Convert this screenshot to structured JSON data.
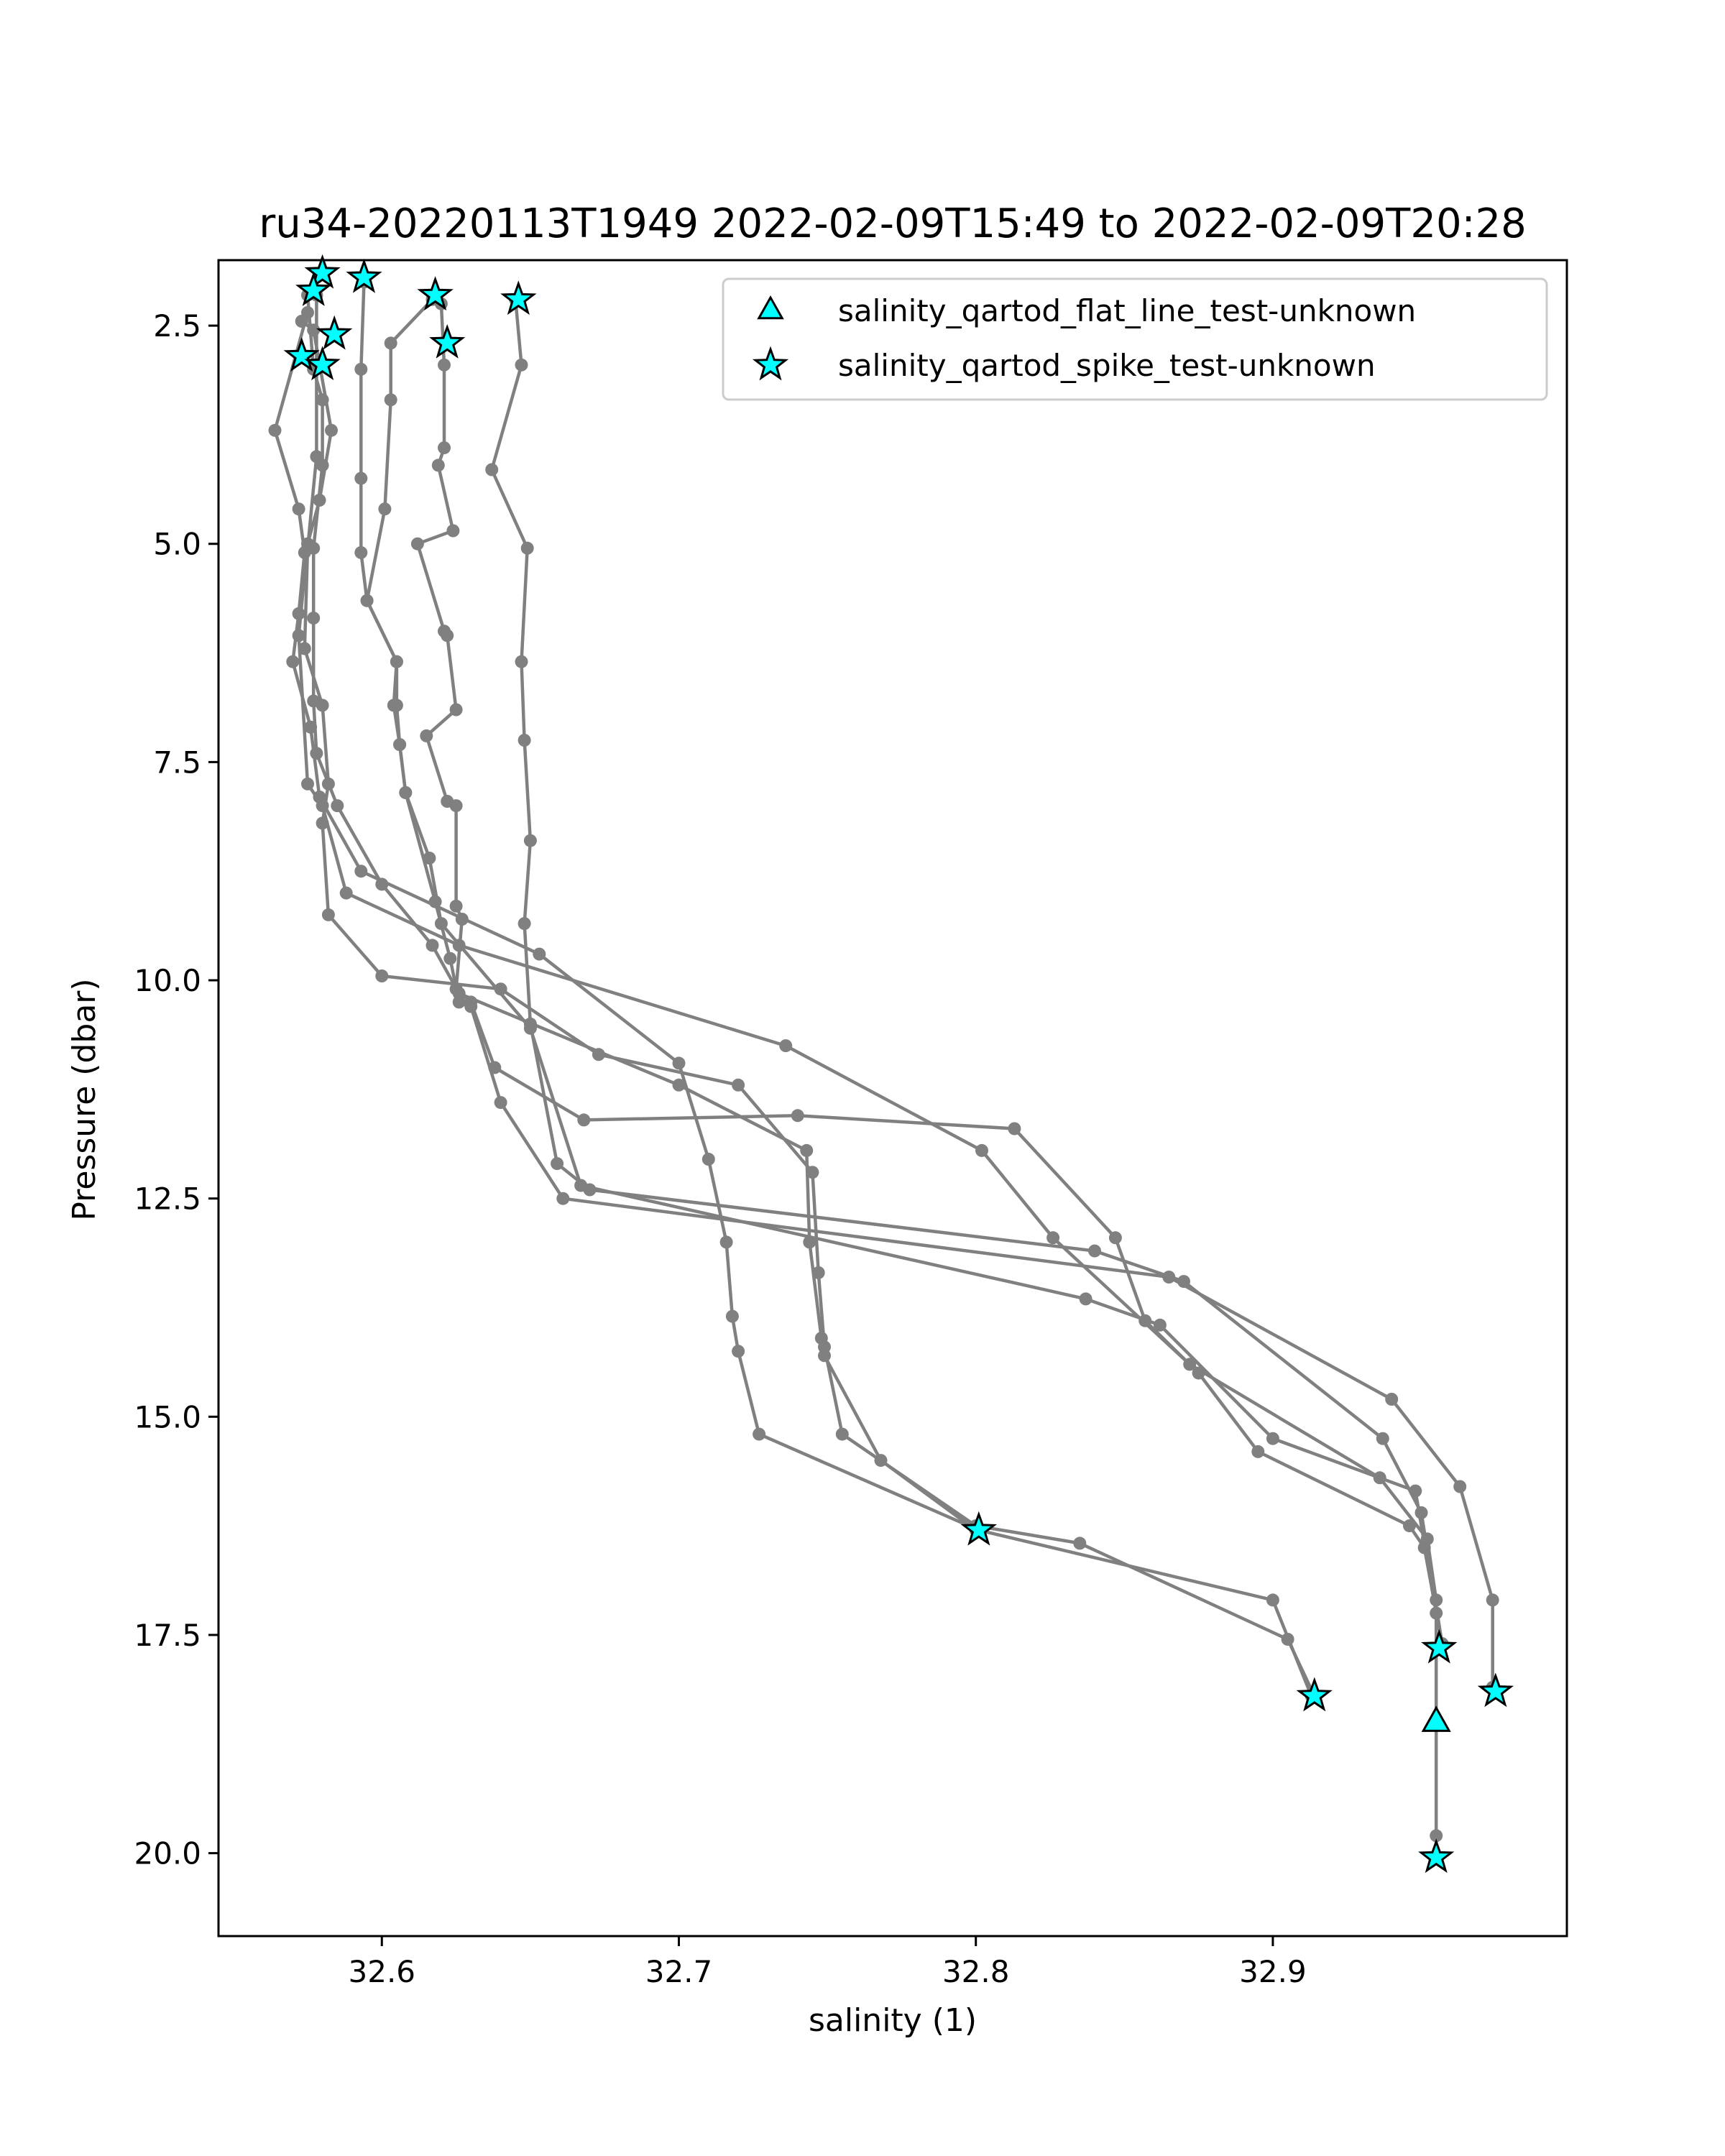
{
  "chart_data": {
    "type": "line",
    "title": "ru34-20220113T1949 2022-02-09T15:49 to 2022-02-09T20:28",
    "xlabel": "salinity (1)",
    "ylabel": "Pressure (dbar)",
    "xlim": [
      32.545,
      32.999
    ],
    "ylim": [
      20.95,
      1.75
    ],
    "y_inverted": true,
    "grid": false,
    "x_ticks": [
      32.6,
      32.7,
      32.8,
      32.9
    ],
    "x_tick_labels": [
      "32.6",
      "32.7",
      "32.8",
      "32.9"
    ],
    "y_ticks": [
      2.5,
      5.0,
      7.5,
      10.0,
      12.5,
      15.0,
      17.5,
      20.0
    ],
    "y_tick_labels": [
      "2.5",
      "5.0",
      "7.5",
      "10.0",
      "12.5",
      "15.0",
      "17.5",
      "20.0"
    ],
    "line_color": "#808080",
    "flag_color": "#00ffff",
    "legend": {
      "placement": "top-right",
      "entries": [
        {
          "label": "salinity_qartod_flat_line_test-unknown",
          "marker": "triangle"
        },
        {
          "label": "salinity_qartod_spike_test-unknown",
          "marker": "star"
        }
      ]
    },
    "profiles": [
      [
        [
          32.575,
          2.35
        ],
        [
          32.564,
          3.7
        ],
        [
          32.572,
          4.6
        ],
        [
          32.574,
          5.1
        ],
        [
          32.572,
          5.8
        ],
        [
          32.57,
          6.35
        ],
        [
          32.576,
          7.1
        ],
        [
          32.579,
          7.9
        ],
        [
          32.593,
          8.75
        ],
        [
          32.653,
          9.7
        ],
        [
          32.7,
          10.95
        ],
        [
          32.71,
          12.05
        ],
        [
          32.716,
          13.0
        ],
        [
          32.718,
          13.85
        ],
        [
          32.72,
          14.25
        ],
        [
          32.727,
          15.2
        ],
        [
          32.801,
          16.3
        ],
        [
          32.9,
          17.1
        ],
        [
          32.913,
          18.2
        ]
      ],
      [
        [
          32.578,
          2.15
        ],
        [
          32.578,
          4.0
        ],
        [
          32.575,
          5.05
        ],
        [
          32.574,
          6.2
        ],
        [
          32.58,
          6.85
        ],
        [
          32.582,
          7.75
        ],
        [
          32.58,
          8.2
        ],
        [
          32.582,
          9.25
        ],
        [
          32.6,
          9.95
        ],
        [
          32.64,
          10.1
        ],
        [
          32.673,
          10.85
        ],
        [
          32.72,
          11.2
        ],
        [
          32.745,
          12.2
        ],
        [
          32.747,
          13.35
        ],
        [
          32.749,
          14.2
        ],
        [
          32.755,
          15.2
        ],
        [
          32.8,
          16.25
        ],
        [
          32.835,
          16.45
        ],
        [
          32.905,
          17.55
        ],
        [
          32.914,
          18.2
        ]
      ],
      [
        [
          32.575,
          2.15
        ],
        [
          32.577,
          3.0
        ],
        [
          32.58,
          3.35
        ],
        [
          32.58,
          4.1
        ],
        [
          32.577,
          5.05
        ],
        [
          32.577,
          5.85
        ],
        [
          32.577,
          6.8
        ],
        [
          32.578,
          7.4
        ],
        [
          32.585,
          8.0
        ],
        [
          32.6,
          8.9
        ],
        [
          32.617,
          9.6
        ],
        [
          32.626,
          10.15
        ],
        [
          32.7,
          11.2
        ],
        [
          32.743,
          11.95
        ],
        [
          32.744,
          13.0
        ],
        [
          32.748,
          14.1
        ],
        [
          32.749,
          14.3
        ],
        [
          32.768,
          15.5
        ],
        [
          32.8,
          16.3
        ]
      ],
      [
        [
          32.594,
          2.0
        ],
        [
          32.593,
          3.0
        ],
        [
          32.593,
          4.25
        ],
        [
          32.593,
          5.1
        ],
        [
          32.595,
          5.65
        ],
        [
          32.605,
          6.35
        ],
        [
          32.604,
          6.85
        ],
        [
          32.606,
          7.3
        ],
        [
          32.608,
          7.85
        ],
        [
          32.616,
          8.6
        ],
        [
          32.62,
          9.35
        ],
        [
          32.65,
          10.55
        ],
        [
          32.667,
          12.35
        ],
        [
          32.837,
          13.65
        ],
        [
          32.862,
          13.95
        ],
        [
          32.9,
          15.25
        ],
        [
          32.948,
          15.85
        ],
        [
          32.955,
          17.25
        ],
        [
          32.955,
          18.5
        ],
        [
          32.955,
          19.8
        ],
        [
          32.955,
          20.05
        ]
      ],
      [
        [
          32.617,
          2.2
        ],
        [
          32.603,
          2.7
        ],
        [
          32.603,
          3.35
        ],
        [
          32.601,
          4.6
        ],
        [
          32.595,
          5.65
        ],
        [
          32.605,
          6.35
        ],
        [
          32.605,
          6.85
        ],
        [
          32.606,
          7.3
        ],
        [
          32.608,
          7.85
        ],
        [
          32.618,
          9.1
        ],
        [
          32.623,
          9.75
        ],
        [
          32.626,
          10.25
        ],
        [
          32.63,
          10.3
        ],
        [
          32.64,
          11.4
        ],
        [
          32.661,
          12.5
        ],
        [
          32.865,
          13.4
        ],
        [
          32.94,
          14.8
        ],
        [
          32.963,
          15.8
        ],
        [
          32.974,
          17.1
        ],
        [
          32.974,
          18.1
        ]
      ],
      [
        [
          32.62,
          2.25
        ],
        [
          32.621,
          2.95
        ],
        [
          32.621,
          3.9
        ],
        [
          32.619,
          4.1
        ],
        [
          32.624,
          4.85
        ],
        [
          32.612,
          5.0
        ],
        [
          32.621,
          6.0
        ],
        [
          32.622,
          6.05
        ],
        [
          32.625,
          6.9
        ],
        [
          32.615,
          7.2
        ],
        [
          32.622,
          7.95
        ],
        [
          32.625,
          8.0
        ],
        [
          32.625,
          9.15
        ],
        [
          32.627,
          9.3
        ],
        [
          32.625,
          10.1
        ],
        [
          32.63,
          10.25
        ],
        [
          32.638,
          11.0
        ],
        [
          32.668,
          11.6
        ],
        [
          32.74,
          11.55
        ],
        [
          32.813,
          11.7
        ],
        [
          32.847,
          12.95
        ],
        [
          32.857,
          13.9
        ],
        [
          32.875,
          14.5
        ],
        [
          32.895,
          15.4
        ],
        [
          32.946,
          16.25
        ],
        [
          32.951,
          16.5
        ],
        [
          32.957,
          17.6
        ]
      ],
      [
        [
          32.645,
          2.2
        ],
        [
          32.647,
          2.95
        ],
        [
          32.637,
          4.15
        ],
        [
          32.649,
          5.05
        ],
        [
          32.647,
          6.35
        ],
        [
          32.648,
          7.25
        ],
        [
          32.65,
          8.4
        ],
        [
          32.648,
          9.35
        ],
        [
          32.65,
          10.5
        ],
        [
          32.659,
          12.1
        ],
        [
          32.67,
          12.4
        ],
        [
          32.84,
          13.1
        ],
        [
          32.87,
          13.45
        ],
        [
          32.937,
          15.25
        ],
        [
          32.95,
          16.1
        ],
        [
          32.957,
          17.6
        ]
      ],
      [
        [
          32.573,
          2.45
        ],
        [
          32.577,
          2.55
        ],
        [
          32.583,
          3.7
        ],
        [
          32.579,
          4.5
        ],
        [
          32.575,
          5.0
        ],
        [
          32.572,
          6.05
        ],
        [
          32.575,
          7.75
        ],
        [
          32.58,
          8.0
        ],
        [
          32.588,
          9.0
        ],
        [
          32.626,
          9.6
        ],
        [
          32.736,
          10.75
        ],
        [
          32.802,
          11.95
        ],
        [
          32.826,
          12.95
        ],
        [
          32.872,
          14.4
        ],
        [
          32.936,
          15.7
        ],
        [
          32.952,
          16.4
        ],
        [
          32.955,
          17.1
        ]
      ]
    ],
    "flat_line_flags": [
      [
        32.955,
        18.5
      ]
    ],
    "spike_flags": [
      [
        32.58,
        1.9
      ],
      [
        32.577,
        2.1
      ],
      [
        32.594,
        1.95
      ],
      [
        32.618,
        2.15
      ],
      [
        32.646,
        2.2
      ],
      [
        32.584,
        2.6
      ],
      [
        32.622,
        2.7
      ],
      [
        32.573,
        2.85
      ],
      [
        32.58,
        2.95
      ],
      [
        32.801,
        16.3
      ],
      [
        32.914,
        18.2
      ],
      [
        32.956,
        17.65
      ],
      [
        32.975,
        18.15
      ],
      [
        32.955,
        20.05
      ]
    ]
  }
}
